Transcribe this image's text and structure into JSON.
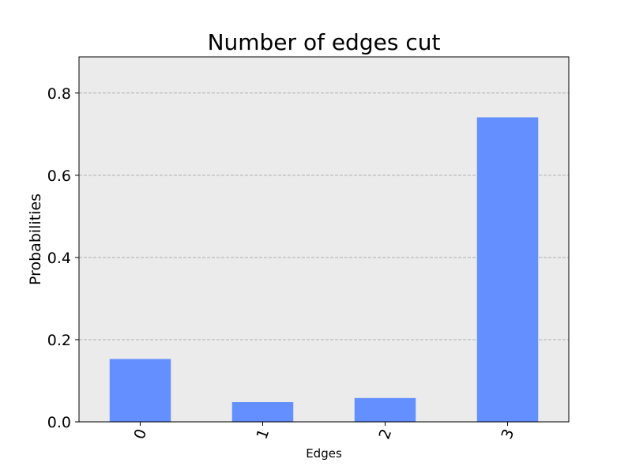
{
  "chart_data": {
    "type": "bar",
    "title": "Number of edges cut",
    "xlabel": "Edges",
    "ylabel": "Probabilities",
    "categories": [
      "0",
      "1",
      "2",
      "3"
    ],
    "values": [
      0.153,
      0.048,
      0.058,
      0.741
    ],
    "ylim": [
      0,
      0.888
    ],
    "yticks": [
      0.0,
      0.2,
      0.4,
      0.6,
      0.8
    ],
    "ytick_labels": [
      "0.0",
      "0.2",
      "0.4",
      "0.6",
      "0.8"
    ],
    "xtick_rotation_deg": 70,
    "grid": "y-dashed",
    "colors": {
      "bar": "#648FFF",
      "plot_background": "#EBEBEB",
      "grid": "#B0B0B0",
      "axis": "#000000"
    }
  }
}
